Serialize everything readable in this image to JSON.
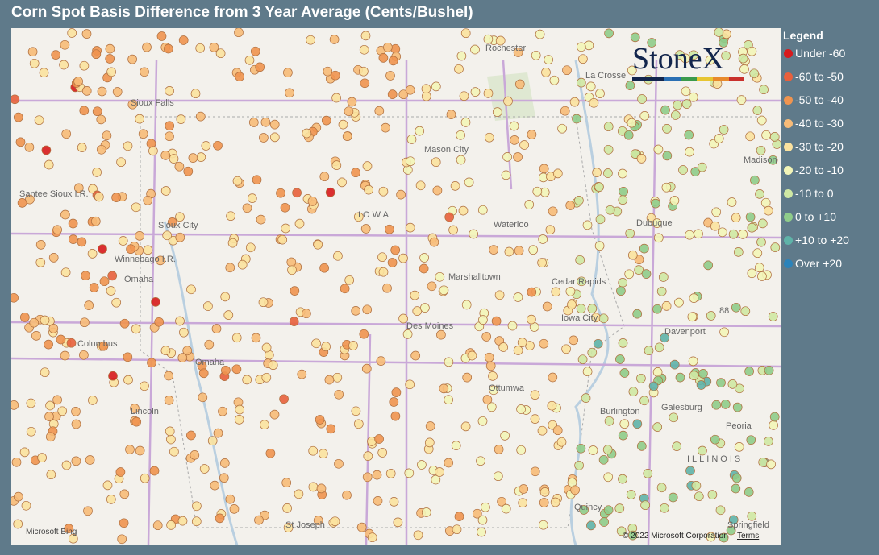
{
  "title": "Corn Spot Basis Difference from 3 Year Average (Cents/Bushel)",
  "legend": {
    "title": "Legend",
    "items": [
      {
        "label": "Under -60",
        "color": "#d7191c"
      },
      {
        "label": "-60 to -50",
        "color": "#e8603c"
      },
      {
        "label": "-50 to -40",
        "color": "#f0944f"
      },
      {
        "label": "-40 to -30",
        "color": "#f7bb78"
      },
      {
        "label": "-30 to -20",
        "color": "#fbe29f"
      },
      {
        "label": "-20 to -10",
        "color": "#f3f5b8"
      },
      {
        "label": "-10 to 0",
        "color": "#cfe8a3"
      },
      {
        "label": "0 to +10",
        "color": "#8fcc8a"
      },
      {
        "label": "+10 to +20",
        "color": "#5fb3a8"
      },
      {
        "label": "Over +20",
        "color": "#2b83ba"
      }
    ]
  },
  "logo": "StoneX",
  "map": {
    "labels": [
      "Rochester",
      "La Crosse",
      "Sioux Falls",
      "Mason City",
      "IOWA",
      "Sioux City",
      "Waterloo",
      "Dubuque",
      "Madison",
      "Winnebago I.R.",
      "Omaha",
      "Marshalltown",
      "Cedar Rapids",
      "Columbus",
      "Iowa City",
      "Davenport",
      "Des Moines",
      "Omaha",
      "Ottumwa",
      "Galesburg",
      "Lincoln",
      "Burlington",
      "Peoria",
      "ILLINOIS",
      "Quincy",
      "St Joseph",
      "Springfield",
      "Santee Sioux I.R.",
      "88"
    ]
  },
  "attribution": {
    "provider": "Microsoft Bing",
    "copyright": "© 2022 Microsoft Corporation",
    "terms": "Terms"
  }
}
